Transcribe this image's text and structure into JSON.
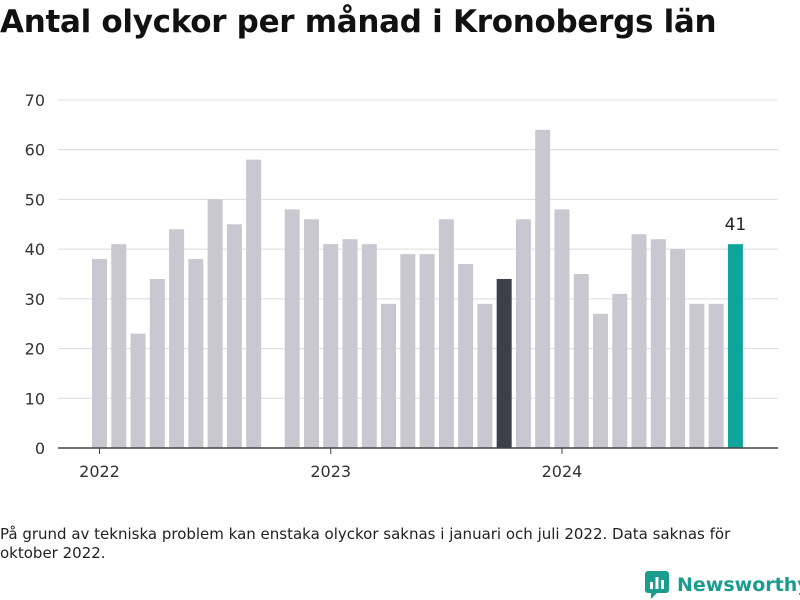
{
  "chart_data": {
    "type": "bar",
    "title": "Antal olyckor per månad i Kronobergs län",
    "xlabel": "",
    "ylabel": "",
    "ylim": [
      0,
      70
    ],
    "y_ticks": [
      0,
      10,
      20,
      30,
      40,
      50,
      60,
      70
    ],
    "grid": true,
    "x_tick_labels": [
      {
        "label": "2022",
        "month": "2022-01"
      },
      {
        "label": "2023",
        "month": "2023-01"
      },
      {
        "label": "2024",
        "month": "2024-01"
      }
    ],
    "categories": [
      "2022-01",
      "2022-02",
      "2022-03",
      "2022-04",
      "2022-05",
      "2022-06",
      "2022-07",
      "2022-08",
      "2022-09",
      "2022-10",
      "2022-11",
      "2022-12",
      "2023-01",
      "2023-02",
      "2023-03",
      "2023-04",
      "2023-05",
      "2023-06",
      "2023-07",
      "2023-08",
      "2023-09",
      "2023-10",
      "2023-11",
      "2023-12",
      "2024-01",
      "2024-02",
      "2024-03",
      "2024-04",
      "2024-05",
      "2024-06",
      "2024-07",
      "2024-08",
      "2024-09",
      "2024-10"
    ],
    "values": [
      38,
      41,
      23,
      34,
      44,
      38,
      50,
      45,
      58,
      null,
      48,
      46,
      41,
      42,
      41,
      29,
      39,
      39,
      46,
      37,
      29,
      34,
      46,
      64,
      48,
      35,
      27,
      31,
      43,
      42,
      40,
      29,
      29,
      41
    ],
    "highlight": [
      {
        "category": "2023-10",
        "color": "#3f3f4a"
      },
      {
        "category": "2024-10",
        "color": "#10a59a",
        "label": "41"
      }
    ],
    "colors": {
      "bar": "#c9c7cf",
      "bar_dark": "#3f3f4a",
      "bar_accent": "#10a59a",
      "grid": "#dcdcdc",
      "axis": "#444444"
    }
  },
  "footnote": "På grund av tekniska problem kan enstaka olyckor saknas i januari och juli 2022. Data saknas för oktober 2022.",
  "brand": {
    "name": "Newsworthy",
    "icon": "newsworthy-logo-icon",
    "color": "#1a9c8e"
  }
}
